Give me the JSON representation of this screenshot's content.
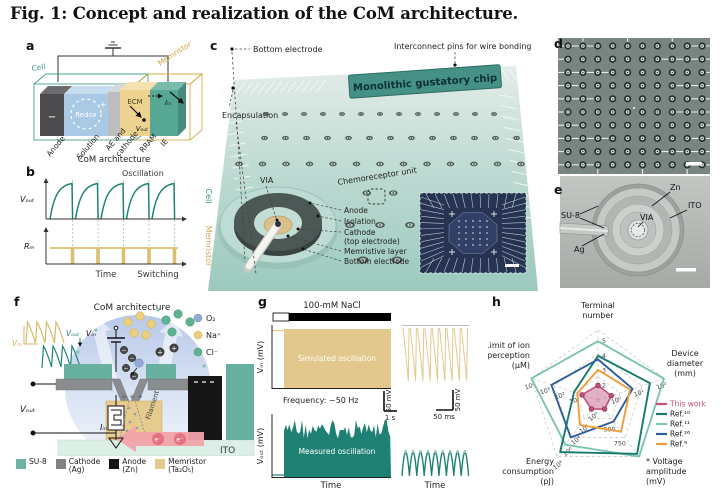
{
  "figure": {
    "title": "Fig. 1: Concept and realization of the CoM architecture."
  },
  "panels": {
    "a": {
      "label": "a",
      "cell": "Cell",
      "memristor": "Memristor",
      "redox": "Redox",
      "minus": "−",
      "plus": "+",
      "ecm": "ECM",
      "v_out": "Vₒᵤₜ",
      "i_in": "Iᵢₙ",
      "anode": "Anode",
      "solution": "Solution",
      "ae_line1": "AE and",
      "ae_line2": "cathode",
      "rram": "RRAM",
      "ie": "IE",
      "caption": "CoM architecture"
    },
    "b": {
      "label": "b",
      "y_top": "Vₒᵤₜ",
      "y_bottom": "Rₘ",
      "x": "Time",
      "oscillation": "Oscillation",
      "switching": "Switching",
      "cell": "Cell",
      "memristor": "Memristor"
    },
    "c": {
      "label": "c",
      "bottom_electrode_top": "Bottom electrode",
      "interconnect": "Interconnect pins for wire bonding",
      "banner": "Monolithic gustatory chip",
      "encapsulation": "Encapsulation",
      "via": "VIA",
      "chemoreceptor_unit": "Chemoreceptor unit",
      "anode": "Anode",
      "isolation": "Isolation",
      "cathode_line1": "Cathode",
      "cathode_line2": "(top electrode)",
      "memristive_layer": "Memristive layer",
      "bottom_electrode": "Bottom electrode"
    },
    "d": {
      "label": "d"
    },
    "e": {
      "label": "e",
      "zn": "Zn",
      "ito": "ITO",
      "via": "VIA",
      "su8": "SU-8",
      "ag": "Ag"
    },
    "f": {
      "label": "f",
      "title": "CoM architecture",
      "v_m": "Vₘ",
      "v_out_trace": "Vₒᵤₜ",
      "v_in": "Vᵢₙ",
      "v_out": "Vₒᵤₜ",
      "i_in": "Iᵢₙ",
      "plus_charges": "+ + +",
      "filament": "Filament",
      "ito": "ITO",
      "ions": [
        {
          "label": "O₂",
          "color": "#93abd6"
        },
        {
          "label": "Na⁺",
          "color": "#eccf7e"
        },
        {
          "label": "Cl⁻",
          "color": "#5fb391"
        }
      ],
      "legend": [
        {
          "line1": "SU-8",
          "line2": "",
          "color": "#6cb3a3"
        },
        {
          "line1": "Cathode",
          "line2": "(Ag)",
          "color": "#808285"
        },
        {
          "line1": "Anode",
          "line2": "(Zn)",
          "color": "#151515"
        },
        {
          "line1": "Memristor",
          "line2": "(Ta₂O₅)",
          "color": "#e4c98c"
        }
      ]
    },
    "g": {
      "label": "g",
      "stimulus": "100-mM NaCl",
      "y_top": "Vₘ (mV)",
      "y_bottom": "Vₒᵤₜ (mV)",
      "sim_label": "Simulated oscillation",
      "meas_label": "Measured oscillation",
      "frequency": "Frequency: ~50 Hz",
      "scale_v": "50 mV",
      "scale_t1": "1 s",
      "scale_v2": "50 mV",
      "scale_t2": "50 ms",
      "x1": "Time",
      "x2": "Time"
    },
    "h": {
      "label": "h"
    }
  },
  "chart_data": [
    {
      "panel": "b",
      "type": "line",
      "x_label": "Time",
      "series": [
        {
          "name": "Vₒᵤₜ",
          "trace": "Cell",
          "annotation": "Oscillation",
          "color": "#1f8376",
          "shape": "five repeating charge-then-reset oscillation cycles"
        },
        {
          "name": "Rₘ",
          "trace": "Memristor",
          "annotation": "Switching",
          "color": "#ddbe6e",
          "shape": "constant high resistance with brief drops at each oscillation reset"
        }
      ],
      "n_cycles": 5
    },
    {
      "panel": "g",
      "type": "line",
      "stimulus": "100-mM NaCl",
      "frequency_hz": 50,
      "x_label": "Time",
      "series": [
        {
          "name": "Vₘ (mV)",
          "label": "Simulated oscillation",
          "color": "#e2c88c",
          "scale_bars": [
            "50 mV",
            "1 s"
          ],
          "zoom_scale_bars": [
            "50 mV",
            "50 ms"
          ]
        },
        {
          "name": "Vₒᵤₜ (mV)",
          "label": "Measured oscillation",
          "color": "#1f8173",
          "scale_bars": [
            "50 mV",
            "1 s"
          ],
          "zoom_scale_bars": [
            "50 mV",
            "50 ms"
          ]
        }
      ]
    },
    {
      "panel": "h",
      "type": "radar",
      "axes": [
        {
          "title": [
            "Terminal",
            "number"
          ],
          "ticks": [
            "2",
            "3",
            "4",
            "5"
          ],
          "tick_r": [
            0.21,
            0.42,
            0.63,
            0.84
          ]
        },
        {
          "title": [
            "Device",
            "diameter",
            "(mm)"
          ],
          "ticks": [
            "10⁰",
            "10¹",
            "10²"
          ],
          "tick_r": [
            0.3,
            0.64,
            0.98
          ]
        },
        {
          "title": [
            "* Voltage",
            "amplitude",
            "(mV)"
          ],
          "ticks": [
            "500",
            "750"
          ],
          "tick_r": [
            0.5,
            0.75
          ]
        },
        {
          "title": [
            "Energy",
            "consumption",
            "(pJ)"
          ],
          "ticks": [
            "10⁰",
            "10²",
            "10⁴",
            "10⁶",
            "10⁸"
          ],
          "tick_r": [
            0.18,
            0.4,
            0.6,
            0.8,
            1.04
          ]
        },
        {
          "title": [
            "Limit of ion",
            "perception",
            "(μM)"
          ],
          "ticks": [
            "10¹",
            "10²",
            "10³",
            "10⁴"
          ],
          "tick_r": [
            0.3,
            0.52,
            0.74,
            0.97
          ]
        }
      ],
      "series": [
        {
          "name": "This work",
          "color": "#c0527c",
          "fill": "rgba(192,82,124,0.45)",
          "markers": true,
          "values_norm": [
            0.21,
            0.2,
            0.16,
            0.16,
            0.24
          ]
        },
        {
          "name": "Ref.¹⁰",
          "color": "#177a6c",
          "values_norm": [
            0.63,
            0.78,
            0.95,
            0.92,
            0.36
          ]
        },
        {
          "name": "Ref.¹¹",
          "color": "#7cc3b2",
          "values_norm": [
            0.84,
            0.99,
            1.0,
            0.79,
            1.0
          ]
        },
        {
          "name": "Ref.²⁶",
          "color": "#2d5e9b",
          "values_norm": [
            0.58,
            0.52,
            0.38,
            0.66,
            0.7
          ]
        },
        {
          "name": "Ref.⁹",
          "color": "#f09c3c",
          "values_norm": [
            0.43,
            0.48,
            0.56,
            0.44,
            0.31
          ]
        }
      ],
      "legend_position": "right"
    }
  ]
}
